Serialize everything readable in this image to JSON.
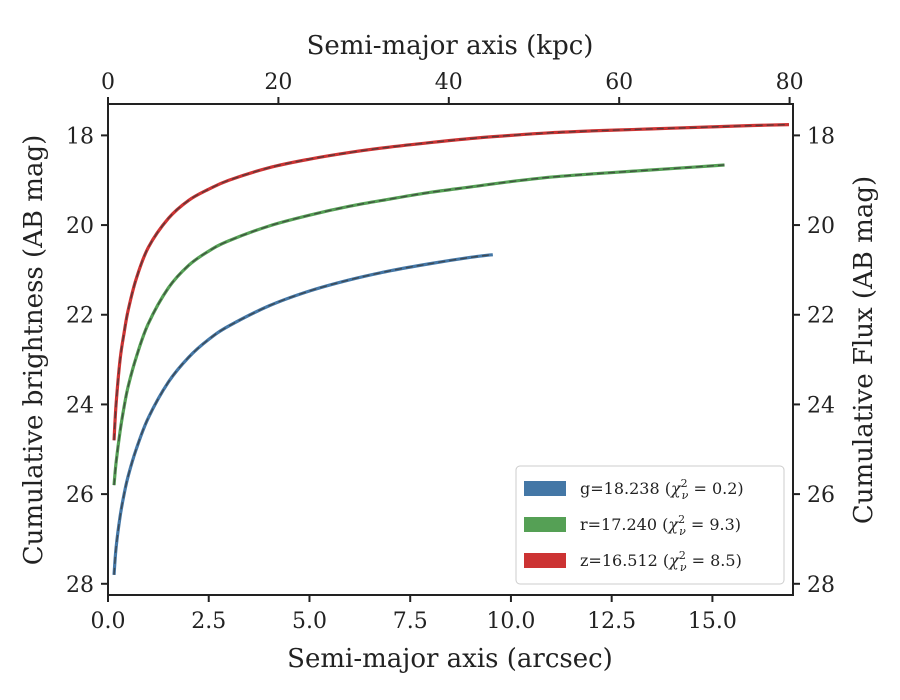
{
  "chart_data": {
    "type": "line",
    "xlabel_bottom": "Semi-major axis (arcsec)",
    "xlabel_top": "Semi-major axis (kpc)",
    "ylabel_left": "Cumulative brightness (AB mag)",
    "ylabel_right": "Cumulative Flux (AB mag)",
    "xlim": [
      0,
      17
    ],
    "ylim": [
      28.25,
      17.3
    ],
    "x2lim": [
      0,
      80.4
    ],
    "xticks": [
      0.0,
      2.5,
      5.0,
      7.5,
      10.0,
      12.5,
      15.0
    ],
    "xtick_labels": [
      "0.0",
      "2.5",
      "5.0",
      "7.5",
      "10.0",
      "12.5",
      "15.0"
    ],
    "x2ticks": [
      0,
      20,
      40,
      60,
      80
    ],
    "x2tick_labels": [
      "0",
      "20",
      "40",
      "60",
      "80"
    ],
    "yticks": [
      18,
      20,
      22,
      24,
      26,
      28
    ],
    "ytick_labels": [
      "18",
      "20",
      "22",
      "24",
      "26",
      "28"
    ],
    "grid": false,
    "legend_position": "lower-right",
    "series": [
      {
        "name": "g=18.238 (χ²ν = 0.2)",
        "legend_main": "g=18.238 (",
        "legend_sub": "ν",
        "legend_value": " = 0.2)",
        "color": "#4477a6",
        "x": [
          0.15,
          0.2,
          0.3,
          0.4,
          0.5,
          0.7,
          1.0,
          1.5,
          2.0,
          2.5,
          3.0,
          4.0,
          5.0,
          6.0,
          7.0,
          8.0,
          9.0,
          9.55
        ],
        "y": [
          27.8,
          27.2,
          26.5,
          26.0,
          25.6,
          25.0,
          24.3,
          23.5,
          22.95,
          22.55,
          22.25,
          21.8,
          21.47,
          21.22,
          21.02,
          20.86,
          20.72,
          20.66
        ]
      },
      {
        "name": "r=17.240 (χ²ν = 9.3)",
        "legend_main": "r=17.240 (",
        "legend_sub": "ν",
        "legend_value": " = 9.3)",
        "color": "#55a055",
        "x": [
          0.15,
          0.2,
          0.3,
          0.4,
          0.5,
          0.7,
          1.0,
          1.5,
          2.0,
          2.5,
          3.0,
          4.0,
          5.0,
          6.0,
          7.0,
          8.0,
          9.0,
          10.0,
          11.0,
          12.0,
          13.0,
          14.0,
          15.3
        ],
        "y": [
          25.8,
          25.3,
          24.6,
          24.05,
          23.6,
          22.95,
          22.2,
          21.4,
          20.9,
          20.58,
          20.35,
          20.02,
          19.78,
          19.58,
          19.42,
          19.27,
          19.15,
          19.03,
          18.93,
          18.86,
          18.8,
          18.74,
          18.66
        ]
      },
      {
        "name": "z=16.512 (χ²ν = 8.5)",
        "legend_main": "z=16.512 (",
        "legend_sub": "ν",
        "legend_value": " = 8.5)",
        "color": "#cc3333",
        "x": [
          0.15,
          0.2,
          0.3,
          0.4,
          0.5,
          0.7,
          1.0,
          1.5,
          2.0,
          2.5,
          3.0,
          4.0,
          5.0,
          6.0,
          7.0,
          8.0,
          9.0,
          10.0,
          11.0,
          12.0,
          13.0,
          14.0,
          15.0,
          16.0,
          16.9
        ],
        "y": [
          24.8,
          24.0,
          23.0,
          22.4,
          21.9,
          21.2,
          20.5,
          19.85,
          19.45,
          19.2,
          19.0,
          18.72,
          18.53,
          18.38,
          18.26,
          18.16,
          18.07,
          18.0,
          17.94,
          17.9,
          17.87,
          17.84,
          17.81,
          17.78,
          17.76
        ]
      }
    ]
  }
}
